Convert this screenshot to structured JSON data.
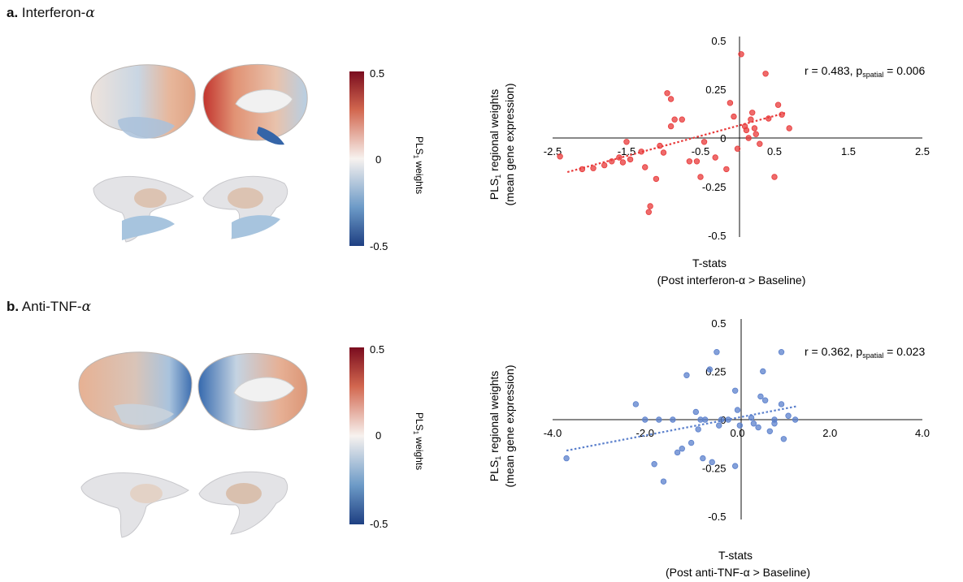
{
  "panels": [
    {
      "letter": "a.",
      "title": "Interferon-",
      "title_greek": "α",
      "colorbar": {
        "max_label": "0.5",
        "mid_label": "0",
        "min_label": "-0.5",
        "label_main": "PLS",
        "label_sub": "1",
        "label_tail": " weights"
      },
      "chart_data": {
        "type": "scatter",
        "title": "",
        "ylabel_line1_main": "PLS",
        "ylabel_line1_sub": "1",
        "ylabel_line1_tail": " regional weights",
        "ylabel_line2": "(mean gene expression)",
        "xlabel_line1": "T-stats",
        "xlabel_line2": "(Post interferon-α > Baseline)",
        "annotation_main": "r = 0.483, p",
        "annotation_sub": "spatial",
        "annotation_tail": " = 0.006",
        "xlim": [
          -2.5,
          2.5
        ],
        "ylim": [
          -0.5,
          0.5
        ],
        "x_ticks": [
          "-2.5",
          "-1.5",
          "-0.5",
          "0.5",
          "1.5",
          "2.5"
        ],
        "x_tick_values": [
          -2.5,
          -1.5,
          -0.5,
          0.5,
          1.5,
          2.5
        ],
        "y_ticks": [
          "0.5",
          "0.25",
          "0",
          "-0.25",
          "-0.5"
        ],
        "y_tick_values": [
          0.5,
          0.25,
          0,
          -0.25,
          -0.5
        ],
        "trendline": {
          "x": [
            -2.3,
            0.66
          ],
          "y": [
            -0.175,
            0.13
          ]
        },
        "color": "#e83a3a",
        "points": [
          [
            -2.4,
            -0.095
          ],
          [
            -2.1,
            -0.16
          ],
          [
            -1.95,
            -0.155
          ],
          [
            -1.8,
            -0.14
          ],
          [
            -1.7,
            -0.12
          ],
          [
            -1.6,
            -0.1
          ],
          [
            -1.55,
            -0.125
          ],
          [
            -1.5,
            -0.02
          ],
          [
            -1.45,
            -0.11
          ],
          [
            -1.3,
            -0.07
          ],
          [
            -1.25,
            -0.15
          ],
          [
            -1.2,
            -0.38
          ],
          [
            -1.18,
            -0.35
          ],
          [
            -1.1,
            -0.21
          ],
          [
            -1.05,
            -0.04
          ],
          [
            -1.0,
            -0.075
          ],
          [
            -0.95,
            0.23
          ],
          [
            -0.9,
            0.2
          ],
          [
            -0.9,
            0.06
          ],
          [
            -0.85,
            0.095
          ],
          [
            -0.75,
            0.095
          ],
          [
            -0.65,
            -0.12
          ],
          [
            -0.55,
            -0.12
          ],
          [
            -0.5,
            -0.2
          ],
          [
            -0.45,
            -0.02
          ],
          [
            -0.3,
            -0.1
          ],
          [
            -0.15,
            -0.16
          ],
          [
            -0.1,
            0.18
          ],
          [
            -0.05,
            0.11
          ],
          [
            0.0,
            -0.055
          ],
          [
            0.05,
            0.43
          ],
          [
            0.1,
            0.06
          ],
          [
            0.12,
            0.04
          ],
          [
            0.15,
            0.0
          ],
          [
            0.18,
            0.095
          ],
          [
            0.2,
            0.13
          ],
          [
            0.23,
            0.05
          ],
          [
            0.25,
            0.02
          ],
          [
            0.3,
            -0.03
          ],
          [
            0.38,
            0.33
          ],
          [
            0.42,
            0.1
          ],
          [
            0.5,
            -0.2
          ],
          [
            0.55,
            0.17
          ],
          [
            0.6,
            0.12
          ],
          [
            0.7,
            0.05
          ]
        ]
      }
    },
    {
      "letter": "b.",
      "title": "Anti-TNF-",
      "title_greek": "α",
      "colorbar": {
        "max_label": "0.5",
        "mid_label": "0",
        "min_label": "-0.5",
        "label_main": "PLS",
        "label_sub": "1",
        "label_tail": " weights"
      },
      "chart_data": {
        "type": "scatter",
        "title": "",
        "ylabel_line1_main": "PLS",
        "ylabel_line1_sub": "1",
        "ylabel_line1_tail": " regional weights",
        "ylabel_line2": "(mean gene expression)",
        "xlabel_line1": "T-stats",
        "xlabel_line2": "(Post anti-TNF-α > Baseline)",
        "annotation_main": "r = 0.362, p",
        "annotation_sub": "spatial",
        "annotation_tail": " = 0.023",
        "xlim": [
          -4.0,
          4.0
        ],
        "ylim": [
          -0.5,
          0.5
        ],
        "x_ticks": [
          "-4.0",
          "-2.0",
          "0.0",
          "2.0",
          "4.0"
        ],
        "x_tick_values": [
          -4.0,
          -2.0,
          0.0,
          2.0,
          4.0
        ],
        "y_ticks": [
          "0.5",
          "0.25",
          "0",
          "-0.25",
          "-0.5"
        ],
        "y_tick_values": [
          0.5,
          0.25,
          0,
          -0.25,
          -0.5
        ],
        "trendline": {
          "x": [
            -3.7,
            1.3
          ],
          "y": [
            -0.16,
            0.07
          ]
        },
        "color": "#5b80cc",
        "points": [
          [
            -3.7,
            -0.2
          ],
          [
            -2.2,
            0.08
          ],
          [
            -2.0,
            0.0
          ],
          [
            -1.8,
            -0.23
          ],
          [
            -1.7,
            0.0
          ],
          [
            -1.6,
            -0.32
          ],
          [
            -1.4,
            0.0
          ],
          [
            -1.3,
            -0.17
          ],
          [
            -1.2,
            -0.15
          ],
          [
            -1.1,
            0.23
          ],
          [
            -1.0,
            -0.12
          ],
          [
            -0.9,
            0.04
          ],
          [
            -0.85,
            -0.05
          ],
          [
            -0.8,
            0.0
          ],
          [
            -0.75,
            -0.2
          ],
          [
            -0.7,
            0.0
          ],
          [
            -0.6,
            0.26
          ],
          [
            -0.55,
            -0.22
          ],
          [
            -0.45,
            0.35
          ],
          [
            -0.4,
            -0.03
          ],
          [
            -0.35,
            0.0
          ],
          [
            -0.2,
            0.0
          ],
          [
            -0.05,
            -0.24
          ],
          [
            -0.05,
            0.15
          ],
          [
            0.0,
            0.05
          ],
          [
            0.05,
            -0.03
          ],
          [
            0.3,
            0.01
          ],
          [
            0.35,
            -0.02
          ],
          [
            0.45,
            -0.04
          ],
          [
            0.5,
            0.12
          ],
          [
            0.55,
            0.25
          ],
          [
            0.6,
            0.1
          ],
          [
            0.7,
            -0.06
          ],
          [
            0.8,
            0.0
          ],
          [
            0.8,
            -0.02
          ],
          [
            0.95,
            0.08
          ],
          [
            0.95,
            0.35
          ],
          [
            1.0,
            -0.1
          ],
          [
            1.1,
            0.02
          ],
          [
            1.25,
            0.0
          ]
        ]
      }
    }
  ],
  "colors": {
    "colorbar_top": "#7a0c1e",
    "colorbar_mid": "#f7f2ef",
    "colorbar_bottom": "#1e3f82",
    "brain_warm": "#e1a184",
    "brain_cool": "#9dbad6",
    "brain_neutral": "#e8e4e2"
  }
}
